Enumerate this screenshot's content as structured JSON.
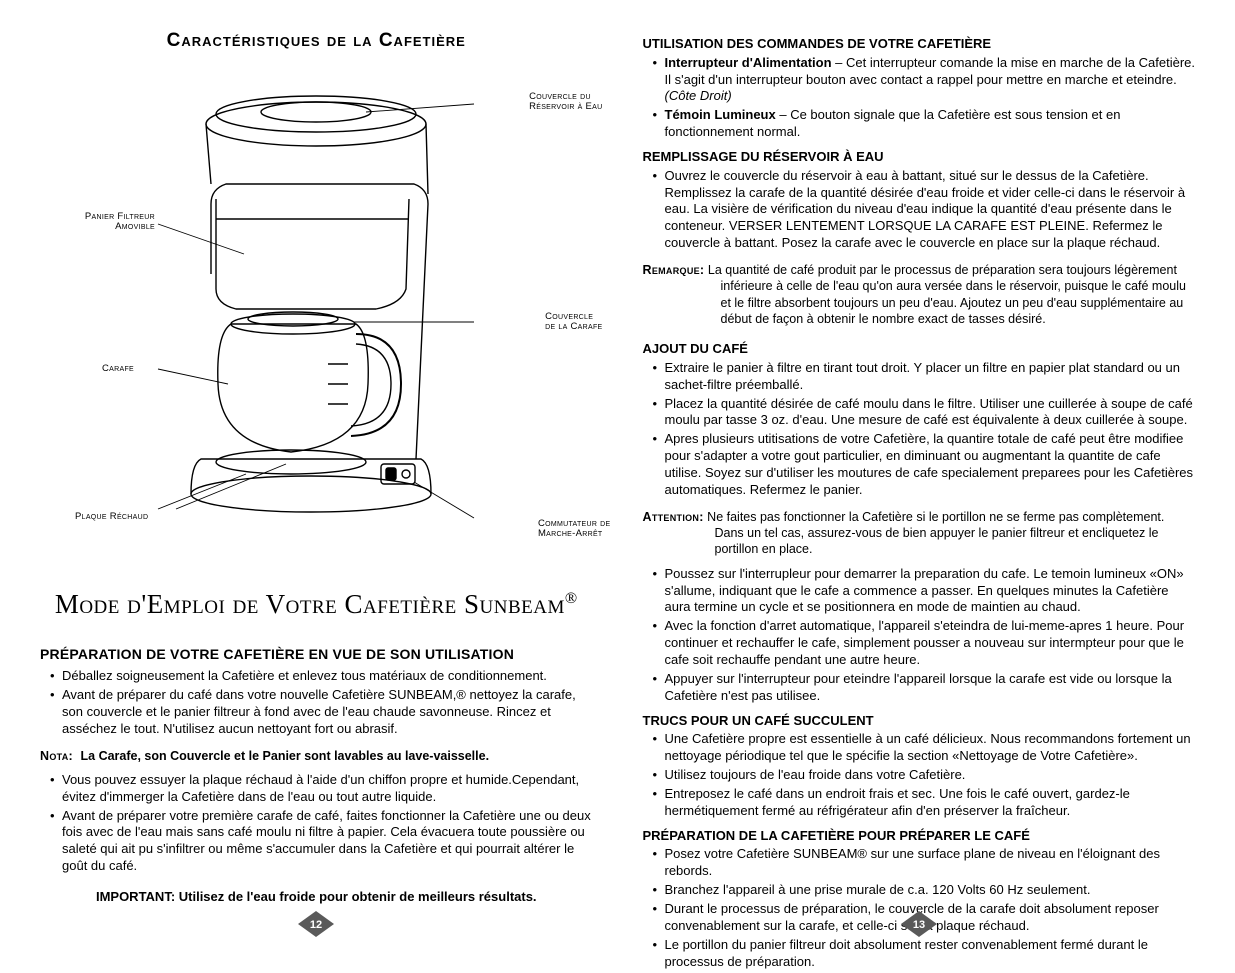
{
  "left": {
    "diagram_title": "Caractéristiques de la Cafetière",
    "callouts": {
      "reservoir": "Couvercle du\nRéservoir à Eau",
      "filter": "Panier Filtreur\nAmovible",
      "carafe_lid": "Couvercle\nde la Carafe",
      "carafe": "Carafe",
      "plate": "Plaque Réchaud",
      "switch": "Commutateur de\nMarche-Arrêt"
    },
    "main_title_pre": "Mode d'Emploi de Votre Cafetière Sunbeam",
    "main_title_reg": "®",
    "prep_heading": "PRÉPARATION DE VOTRE CAFETIÈRE EN VUE DE SON UTILISATION",
    "prep_items": [
      "Déballez soigneusement la Cafetière et enlevez tous matériaux de conditionnement.",
      "Avant de préparer du café dans votre nouvelle Cafetière SUNBEAM,® nettoyez la carafe, son couvercle et le panier filtreur à fond avec de l'eau chaude savonneuse. Rincez et asséchez le tout. N'utilisez aucun nettoyant fort ou abrasif."
    ],
    "nota_lead": "Nota:",
    "nota_text": "La Carafe, son Couvercle et le Panier sont lavables au lave-vaisselle.",
    "nota_items": [
      "Vous pouvez essuyer la plaque réchaud à l'aide d'un chiffon propre et humide.Cependant, évitez d'immerger la Cafetière dans de l'eau ou tout autre liquide.",
      "Avant de préparer votre première carafe de café, faites fonctionner la Cafetière une ou deux fois avec de l'eau mais sans café moulu ni filtre à papier. Cela évacuera toute poussière ou saleté qui ait pu s'infiltrer ou même s'accumuler dans la Cafetière et qui pourrait altérer le goût du café."
    ],
    "important": "IMPORTANT: Utilisez de l'eau froide pour obtenir de meilleurs résultats.",
    "page": "12"
  },
  "right": {
    "h_commands": "UTILISATION DES COMMANDES DE VOTRE CAFETIÈRE",
    "cmd_items": [
      {
        "lead": "Interrupteur d'Alimentation",
        "text": " – Cet interrupteur comande la mise en marche de la Cafetière. Il s'agit d'un interrupteur bouton avec contact a rappel pour mettre en marche et eteindre. ",
        "tail_italic": "(Côte Droit)"
      },
      {
        "lead": "Témoin Lumineux",
        "text": " – Ce bouton signale que la Cafetière est sous tension et en fonctionnement normal."
      }
    ],
    "h_fill": "REMPLISSAGE DU RÉSERVOIR À EAU",
    "fill_items": [
      "Ouvrez le couvercle du réservoir à eau à battant, situé sur le dessus de la Cafetière. Remplissez la carafe de la quantité désirée d'eau froide et vider celle-ci dans le réservoir à eau. La visière de vérification du niveau d'eau indique la quantité d'eau présente dans le conteneur. VERSER LENTEMENT LORSQUE LA CARAFE EST PLEINE. Refermez le couvercle à battant. Posez la carafe avec le couvercle en place sur la plaque réchaud."
    ],
    "remarque_lead": "Remarque:",
    "remarque_text": "La quantité de café produit par le processus de préparation sera toujours légèrement inférieure à celle de l'eau qu'on aura versée dans le réservoir, puisque le café moulu et le filtre absorbent toujours un peu d'eau. Ajoutez un peu d'eau supplémentaire au début de façon à obtenir le nombre exact de tasses désiré.",
    "h_add": "AJOUT DU CAFÉ",
    "add_items_a": [
      "Extraire le panier à filtre en tirant tout droit. Y placer un filtre en papier plat standard ou un sachet-filtre préemballé.",
      "Placez la quantité désirée de café moulu dans le filtre. Utiliser une cuillerée à soupe de café moulu par tasse 3 oz. d'eau. Une mesure de café est équivalente à deux cuillerée à soupe.",
      "Apres plusieurs utitisations de votre Cafetière, la quantire totale de café peut être modifiee pour s'adapter a votre gout particulier, en diminuant ou augmentant la quantite de cafe utilise. Soyez sur d'utiliser les moutures de cafe specialement preparees pour les Cafetières automatiques. Refermez le panier."
    ],
    "attention_lead": "Attention:",
    "attention_text": "Ne faites pas fonctionner la Cafetière si le portillon ne se ferme pas complètement. Dans un tel cas, assurez-vous de bien appuyer le panier filtreur et encliquetez le portillon en place.",
    "add_items_b": [
      "Poussez sur l'interrupleur pour demarrer la preparation du cafe. Le temoin lumineux «ON» s'allume, indiquant que le cafe a commence a passer. En quelques minutes la Cafetière aura termine un cycle et se positionnera en mode de maintien au chaud.",
      "Avec la fonction d'arret automatique, l'appareil s'eteindra de lui-meme-apres 1 heure. Pour continuer et rechauffer le cafe, simplement pousser a nouveau sur intermpteur pour que le cafe soit rechauffe pendant une autre heure.",
      "Appuyer sur l'interrupteur pour eteindre l'appareil lorsque la carafe est vide ou lorsque la Cafetière n'est pas utilisee."
    ],
    "h_tips": "TRUCS POUR UN CAFÉ SUCCULENT",
    "tips_items": [
      "Une Cafetière propre est essentielle à un café délicieux. Nous recommandons fortement un nettoyage périodique tel que le spécifie la section «Nettoyage de Votre Cafetière».",
      "Utilisez toujours de l'eau froide dans votre Cafetière.",
      "Entreposez le café dans un endroit frais et sec. Une fois le café ouvert, gardez-le hermétiquement fermé au réfrigérateur afin d'en préserver la fraîcheur."
    ],
    "h_setup": "PRÉPARATION DE LA CAFETIÈRE POUR PRÉPARER LE CAFÉ",
    "setup_items": [
      "Posez votre Cafetière SUNBEAM® sur une surface plane de niveau en l'éloignant des rebords.",
      "Branchez l'appareil à une prise murale de c.a. 120 Volts 60 Hz seulement.",
      "Durant le processus de préparation, le couvercle de la carafe doit absolument reposer convenablement sur la carafe, et celle-ci sur la plaque réchaud.",
      "Le portillon du panier filtreur doit absolument rester convenablement fermé durant le processus de préparation."
    ],
    "page": "13"
  },
  "style": {
    "text_color": "#000000",
    "background": "#ffffff",
    "diamond_fill": "#5a5a5a",
    "body_font_size_pt": 10,
    "heading_font_size_pt": 14
  }
}
